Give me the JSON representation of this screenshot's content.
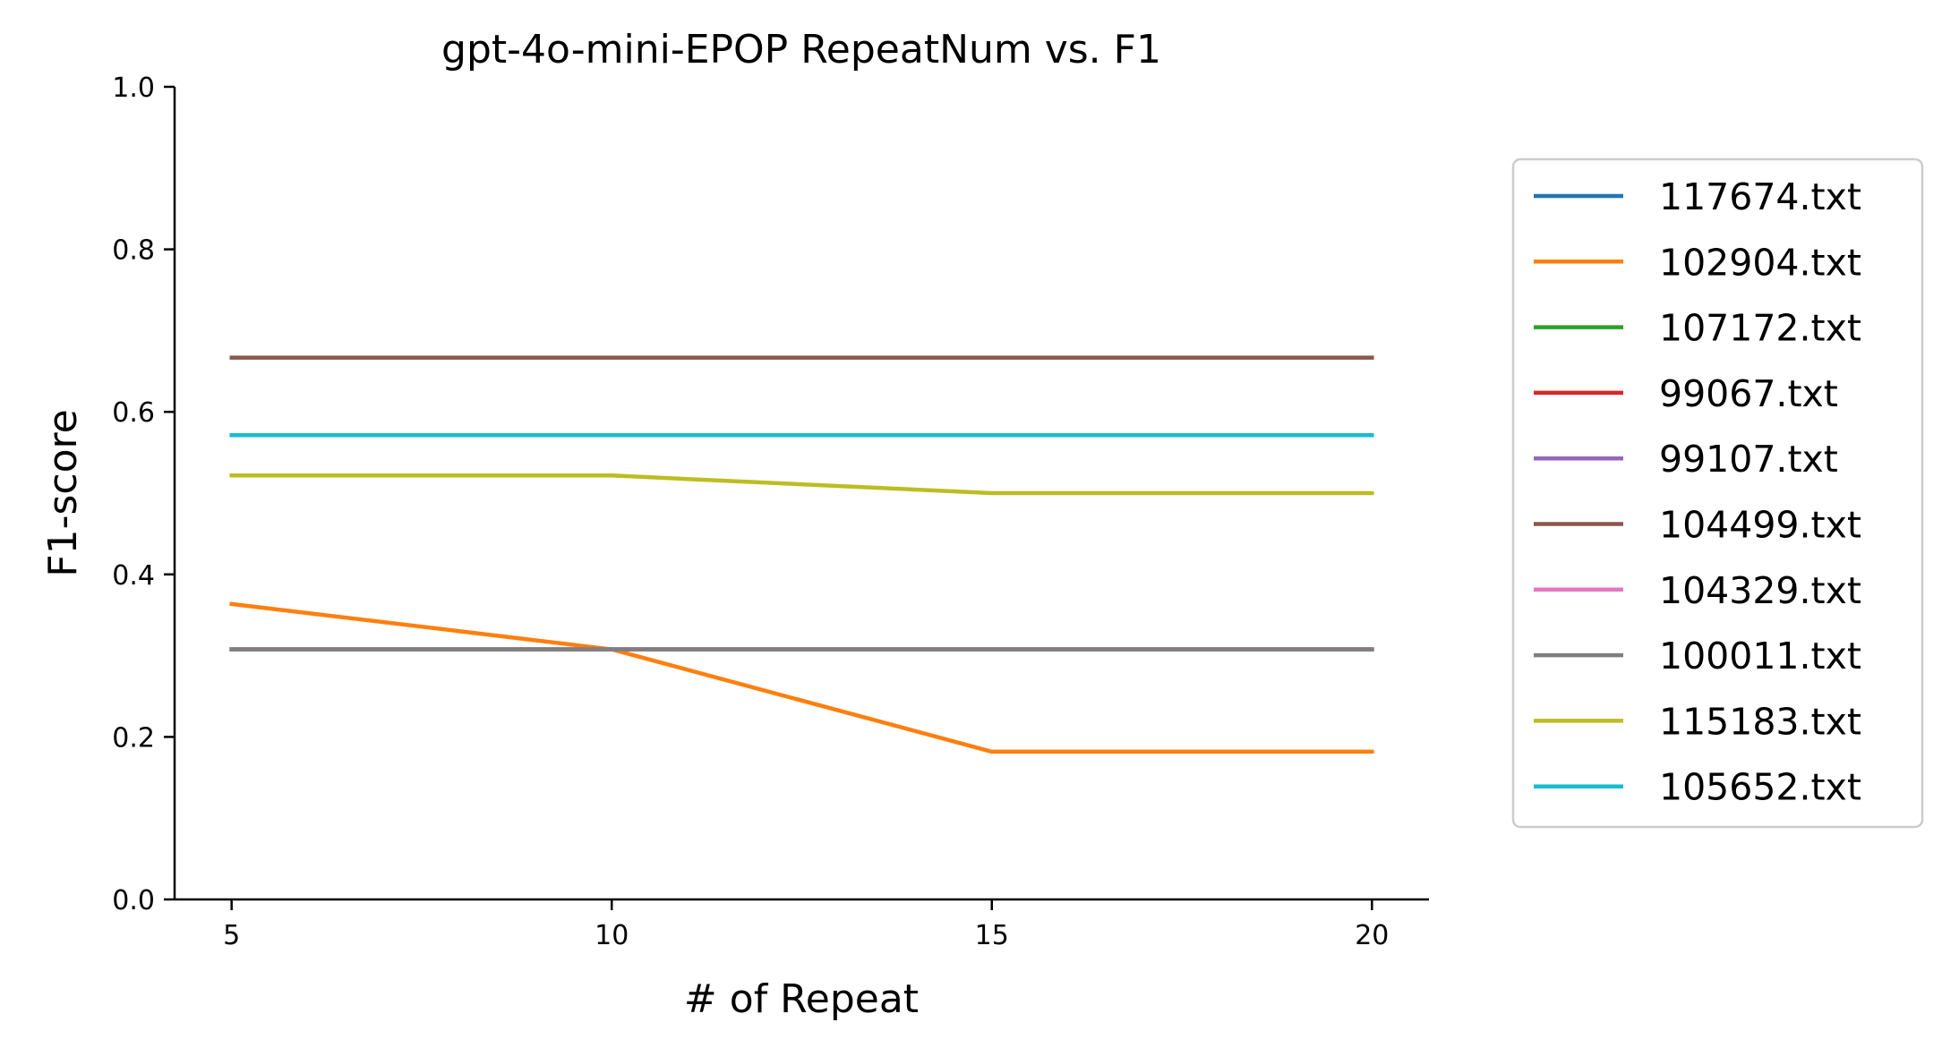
{
  "chart_data": {
    "type": "line",
    "title": "gpt-4o-mini-EPOP RepeatNum vs. F1",
    "xlabel": "# of Repeat",
    "ylabel": "F1-score",
    "x": [
      5,
      10,
      15,
      20
    ],
    "xlim": [
      4.25,
      20.75
    ],
    "ylim": [
      0,
      1
    ],
    "xticks": [
      "5",
      "10",
      "15",
      "20"
    ],
    "yticks": [
      "0.0",
      "0.2",
      "0.4",
      "0.6",
      "0.8",
      "1.0"
    ],
    "grid": false,
    "legend_position": "right",
    "series": [
      {
        "name": "117674.txt",
        "color": "#1f77b4",
        "values": [
          0.3077,
          0.3077,
          0.3077,
          0.3077
        ]
      },
      {
        "name": "102904.txt",
        "color": "#ff7f0e",
        "values": [
          0.3636,
          0.3077,
          0.1818,
          0.1818
        ]
      },
      {
        "name": "107172.txt",
        "color": "#2ca02c",
        "values": [
          0.3077,
          0.3077,
          0.3077,
          0.3077
        ]
      },
      {
        "name": "99067.txt",
        "color": "#d62728",
        "values": [
          0.3077,
          0.3077,
          0.3077,
          0.3077
        ]
      },
      {
        "name": "99107.txt",
        "color": "#9467bd",
        "values": [
          0.3077,
          0.3077,
          0.3077,
          0.3077
        ]
      },
      {
        "name": "104499.txt",
        "color": "#8c564b",
        "values": [
          0.6667,
          0.6667,
          0.6667,
          0.6667
        ]
      },
      {
        "name": "104329.txt",
        "color": "#e377c2",
        "values": [
          0.3077,
          0.3077,
          0.3077,
          0.3077
        ]
      },
      {
        "name": "100011.txt",
        "color": "#7f7f7f",
        "values": [
          0.3077,
          0.3077,
          0.3077,
          0.3077
        ]
      },
      {
        "name": "115183.txt",
        "color": "#bcbd22",
        "values": [
          0.5217,
          0.5217,
          0.5,
          0.5
        ]
      },
      {
        "name": "105652.txt",
        "color": "#17becf",
        "values": [
          0.5714,
          0.5714,
          0.5714,
          0.5714
        ]
      }
    ]
  }
}
